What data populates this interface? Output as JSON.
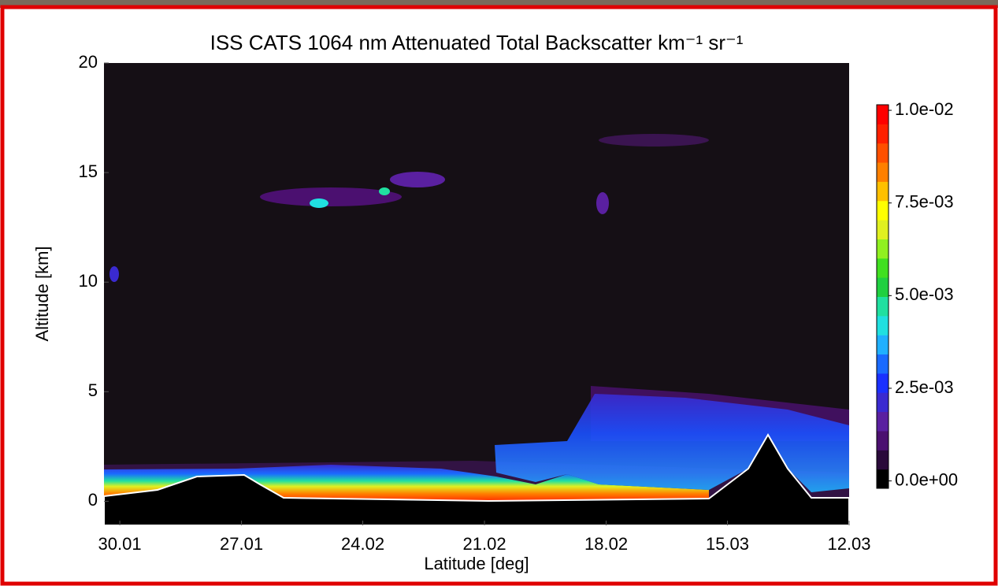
{
  "chart_data": {
    "type": "heatmap",
    "title": "ISS CATS 1064 nm Attenuated Total Backscatter km⁻¹ sr⁻¹",
    "x_label": "Latitude [deg]",
    "y_label": "Altitude [km]",
    "xlim": [
      30.4,
      12.03
    ],
    "xticks": [
      30.01,
      27.01,
      24.02,
      21.02,
      18.02,
      15.03,
      12.03
    ],
    "ylim": [
      -1.1,
      20
    ],
    "yticks": [
      0,
      5,
      10,
      15,
      20
    ],
    "clim": [
      -0.0002,
      0.01015
    ],
    "cticks": [
      {
        "value": 0,
        "label": "0.0e+00"
      },
      {
        "value": 0.0025,
        "label": "2.5e-03"
      },
      {
        "value": 0.005,
        "label": "5.0e-03"
      },
      {
        "value": 0.0075,
        "label": "7.5e-03"
      },
      {
        "value": 0.01,
        "label": "1.0e-02"
      }
    ],
    "colormap": [
      "#000000",
      "#2a0a3a",
      "#4b1070",
      "#5a20a0",
      "#3a2ad0",
      "#1a30ff",
      "#1a6aff",
      "#20b0ff",
      "#20e0e0",
      "#20e0a0",
      "#20d040",
      "#40e020",
      "#90f020",
      "#e0f020",
      "#ffff00",
      "#ffc000",
      "#ff8000",
      "#ff5000",
      "#ff2000",
      "#ff0000"
    ]
  }
}
